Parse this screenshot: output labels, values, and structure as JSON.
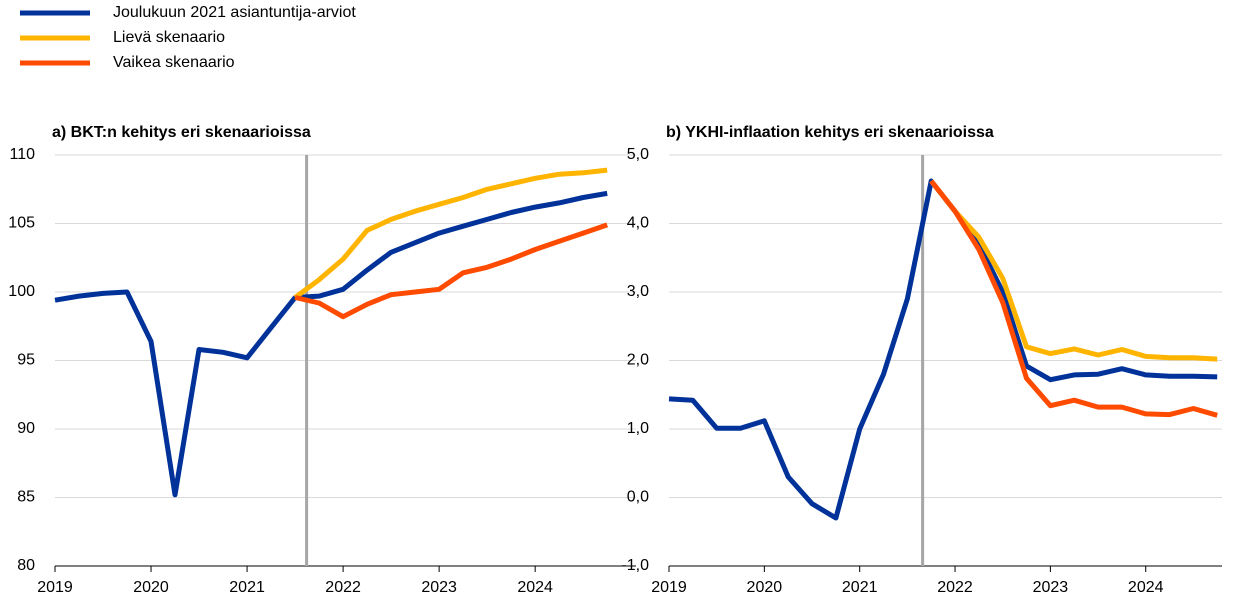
{
  "chart_data": [
    {
      "type": "line",
      "title": "a) BKT:n kehitys eri skenaarioissa",
      "x": [
        2019,
        2019.25,
        2019.5,
        2019.75,
        2020,
        2020.25,
        2020.5,
        2020.75,
        2021,
        2021.25,
        2021.5,
        2021.75,
        2022,
        2022.25,
        2022.5,
        2022.75,
        2023,
        2023.25,
        2023.5,
        2023.75,
        2024,
        2024.25,
        2024.5,
        2024.75
      ],
      "xlim": [
        2019,
        2025.05
      ],
      "xticks": [
        2019,
        2020,
        2021,
        2022,
        2023,
        2024
      ],
      "ylim": [
        80,
        110
      ],
      "yticks": [
        80,
        85,
        90,
        95,
        100,
        105,
        110
      ],
      "grid": true,
      "vline": 2021.62,
      "series": [
        {
          "name": "Joulukuun 2021 asiantuntija-arviot",
          "color": "#003299",
          "values": [
            99.4,
            99.7,
            99.9,
            100.0,
            96.4,
            85.2,
            95.8,
            95.6,
            95.2,
            97.4,
            99.6,
            99.7,
            100.2,
            101.6,
            102.9,
            103.6,
            104.3,
            104.8,
            105.3,
            105.8,
            106.2,
            106.5,
            106.9,
            107.2
          ]
        },
        {
          "name": "Lievä skenaario",
          "color": "#ffb400",
          "values": [
            null,
            null,
            null,
            null,
            null,
            null,
            null,
            null,
            null,
            null,
            99.6,
            100.9,
            102.4,
            104.5,
            105.3,
            105.9,
            106.4,
            106.9,
            107.5,
            107.9,
            108.3,
            108.6,
            108.7,
            108.9
          ]
        },
        {
          "name": "Vaikea skenaario",
          "color": "#ff4b00",
          "values": [
            null,
            null,
            null,
            null,
            null,
            null,
            null,
            null,
            null,
            null,
            99.6,
            99.2,
            98.2,
            99.1,
            99.8,
            100.0,
            100.2,
            101.4,
            101.8,
            102.4,
            103.1,
            103.7,
            104.3,
            104.9
          ]
        }
      ]
    },
    {
      "type": "line",
      "title": "b) YKHI-inflaation kehitys eri skenaarioissa",
      "x": [
        2019,
        2019.25,
        2019.5,
        2019.75,
        2020,
        2020.25,
        2020.5,
        2020.75,
        2021,
        2021.25,
        2021.5,
        2021.75,
        2022,
        2022.25,
        2022.5,
        2022.75,
        2023,
        2023.25,
        2023.5,
        2023.75,
        2024,
        2024.25,
        2024.5,
        2024.75
      ],
      "xlim": [
        2019,
        2024.8
      ],
      "xticks": [
        2019,
        2020,
        2021,
        2022,
        2023,
        2024
      ],
      "ylim": [
        -1,
        5
      ],
      "yticks": [
        {
          "value": -1,
          "label": "-1,0"
        },
        {
          "value": 0,
          "label": "0,0"
        },
        {
          "value": 1,
          "label": "1,0"
        },
        {
          "value": 2,
          "label": "2,0"
        },
        {
          "value": 3,
          "label": "3,0"
        },
        {
          "value": 4,
          "label": "4,0"
        },
        {
          "value": 5,
          "label": "5,0"
        }
      ],
      "grid": true,
      "vline": 2021.66,
      "series": [
        {
          "color": "#003299",
          "values": [
            1.44,
            1.42,
            1.01,
            1.01,
            1.12,
            0.3,
            -0.09,
            -0.3,
            1.0,
            1.8,
            2.9,
            4.62,
            4.18,
            3.7,
            3.0,
            1.92,
            1.72,
            1.79,
            1.8,
            1.88,
            1.79,
            1.77,
            1.77,
            1.76
          ]
        },
        {
          "color": "#ffb400",
          "values": [
            null,
            null,
            null,
            null,
            null,
            null,
            null,
            null,
            null,
            null,
            null,
            4.62,
            4.18,
            3.8,
            3.2,
            2.2,
            2.1,
            2.17,
            2.08,
            2.16,
            2.06,
            2.04,
            2.04,
            2.02
          ]
        },
        {
          "color": "#ff4b00",
          "values": [
            null,
            null,
            null,
            null,
            null,
            null,
            null,
            null,
            null,
            null,
            null,
            4.62,
            4.18,
            3.62,
            2.85,
            1.74,
            1.34,
            1.42,
            1.32,
            1.32,
            1.22,
            1.21,
            1.3,
            1.2
          ]
        }
      ]
    }
  ]
}
